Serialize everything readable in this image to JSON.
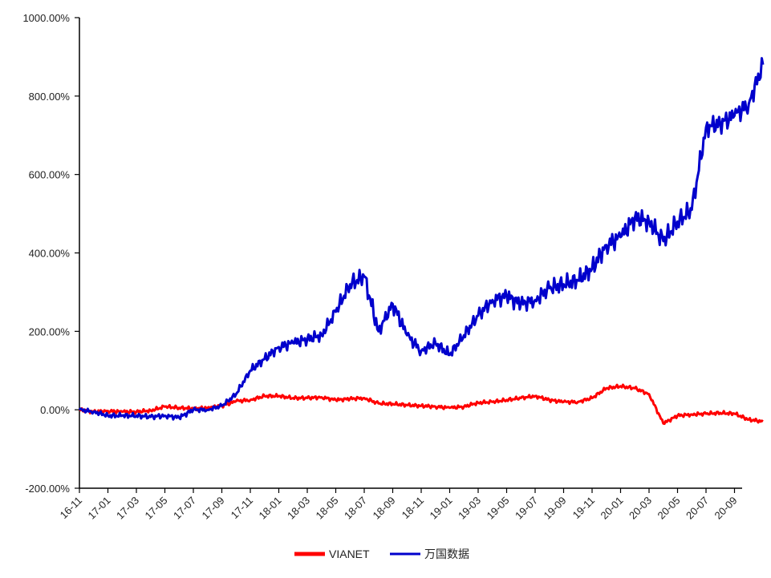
{
  "chart_data": {
    "type": "line",
    "title": "",
    "xlabel": "",
    "ylabel": "",
    "ylim": [
      -200,
      1000
    ],
    "y_ticks": [
      "1000.00%",
      "800.00%",
      "600.00%",
      "400.00%",
      "200.00%",
      "0.00%",
      "-200.00%"
    ],
    "y_tick_values": [
      1000,
      800,
      600,
      400,
      200,
      0,
      -200
    ],
    "x_ticks": [
      "16-11",
      "17-01",
      "17-03",
      "17-05",
      "17-07",
      "17-09",
      "17-11",
      "18-01",
      "18-03",
      "18-05",
      "18-07",
      "18-09",
      "18-11",
      "19-01",
      "19-03",
      "19-05",
      "19-07",
      "19-09",
      "19-11",
      "20-01",
      "20-03",
      "20-05",
      "20-07",
      "20-09"
    ],
    "grid": false,
    "legend": "bottom",
    "x_unit": "month",
    "x": [
      "16-11",
      "16-12",
      "17-01",
      "17-02",
      "17-03",
      "17-04",
      "17-05",
      "17-06",
      "17-07",
      "17-08",
      "17-09",
      "17-10",
      "17-11",
      "17-12",
      "18-01",
      "18-02",
      "18-03",
      "18-04",
      "18-05",
      "18-06",
      "18-07",
      "18-08",
      "18-09",
      "18-10",
      "18-11",
      "18-12",
      "19-01",
      "19-02",
      "19-03",
      "19-04",
      "19-05",
      "19-06",
      "19-07",
      "19-08",
      "19-09",
      "19-10",
      "19-11",
      "19-12",
      "20-01",
      "20-02",
      "20-03",
      "20-04",
      "20-05",
      "20-06",
      "20-07",
      "20-08",
      "20-09",
      "20-10",
      "20-11"
    ],
    "series": [
      {
        "name": "VIANET",
        "color": "#ff0000",
        "values": [
          0,
          -5,
          -3,
          -5,
          -5,
          -2,
          8,
          5,
          3,
          5,
          10,
          22,
          25,
          35,
          35,
          30,
          30,
          32,
          25,
          28,
          30,
          16,
          15,
          12,
          10,
          8,
          5,
          8,
          18,
          20,
          25,
          30,
          35,
          25,
          20,
          20,
          30,
          55,
          60,
          55,
          40,
          -35,
          -15,
          -12,
          -10,
          -8,
          -10,
          -25,
          -30
        ]
      },
      {
        "name": "万国数据",
        "color": "#0000cc",
        "values": [
          0,
          -5,
          -15,
          -15,
          -15,
          -18,
          -15,
          -20,
          0,
          0,
          10,
          40,
          100,
          130,
          160,
          170,
          180,
          190,
          250,
          320,
          340,
          200,
          270,
          190,
          150,
          170,
          140,
          190,
          240,
          280,
          290,
          270,
          280,
          310,
          320,
          330,
          360,
          420,
          440,
          490,
          480,
          430,
          480,
          510,
          720,
          730,
          750,
          780,
          880
        ]
      }
    ]
  }
}
